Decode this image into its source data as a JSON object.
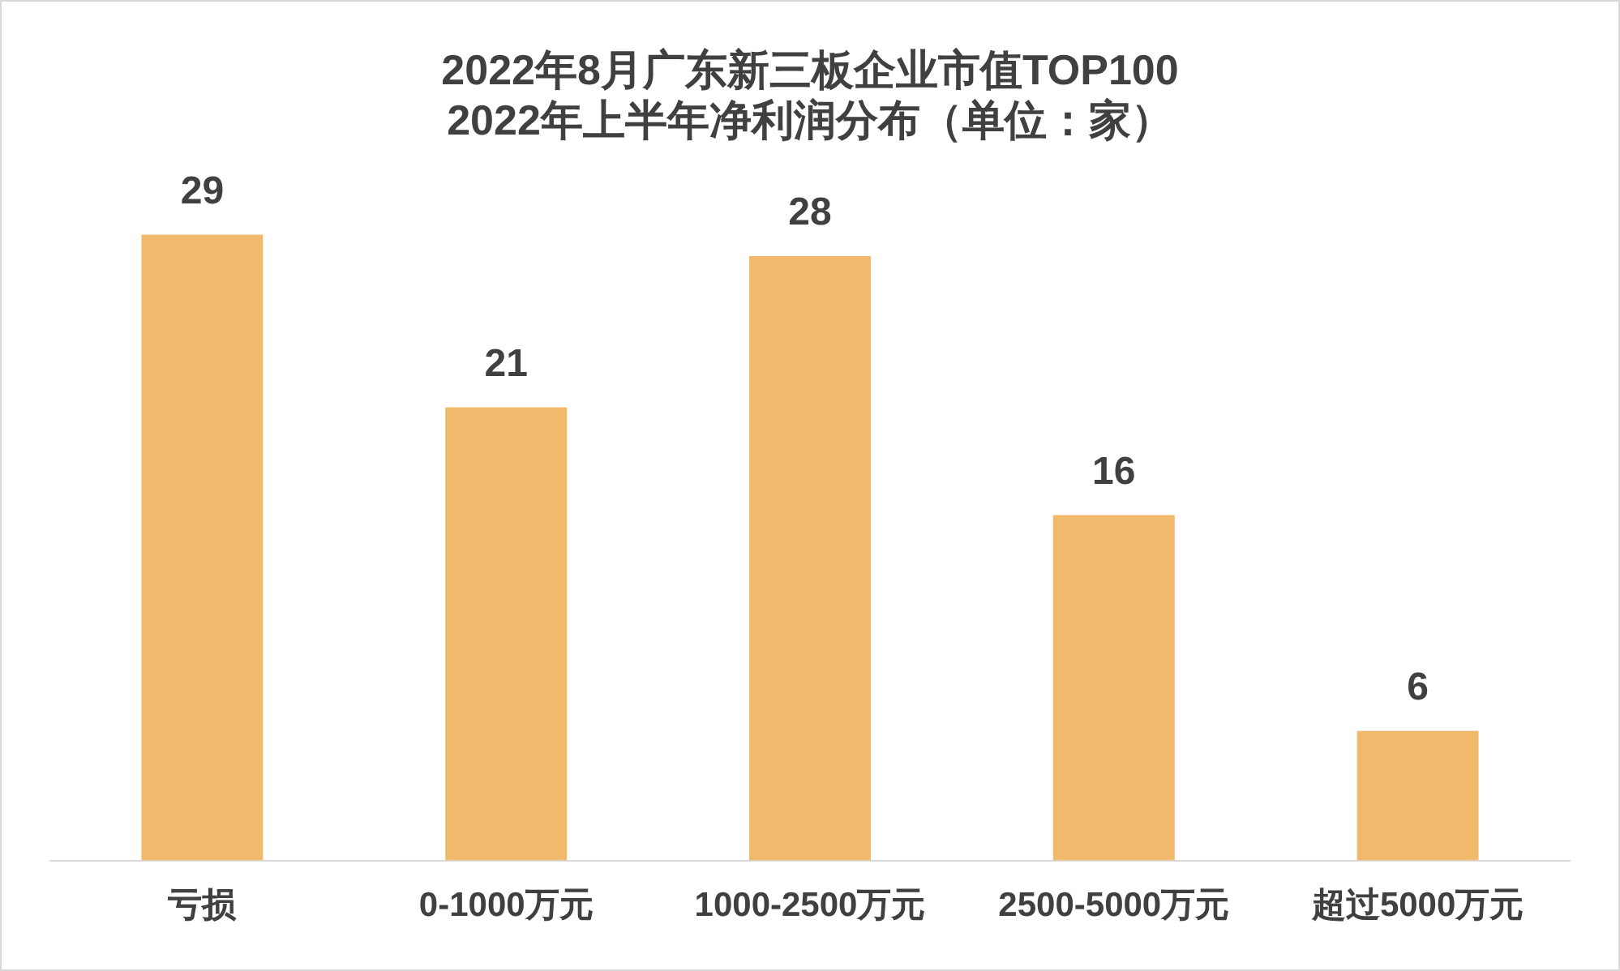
{
  "chart_data": {
    "type": "bar",
    "title": "2022年8月广东新三板企业市值TOP100\n2022年上半年净利润分布（单位：家）",
    "categories": [
      "亏损",
      "0-1000万元",
      "1000-2500万元",
      "2500-5000万元",
      "超过5000万元"
    ],
    "values": [
      29,
      21,
      28,
      16,
      6
    ],
    "color": "#f0b96b",
    "data_labels": true,
    "grid": false,
    "legend": false
  }
}
